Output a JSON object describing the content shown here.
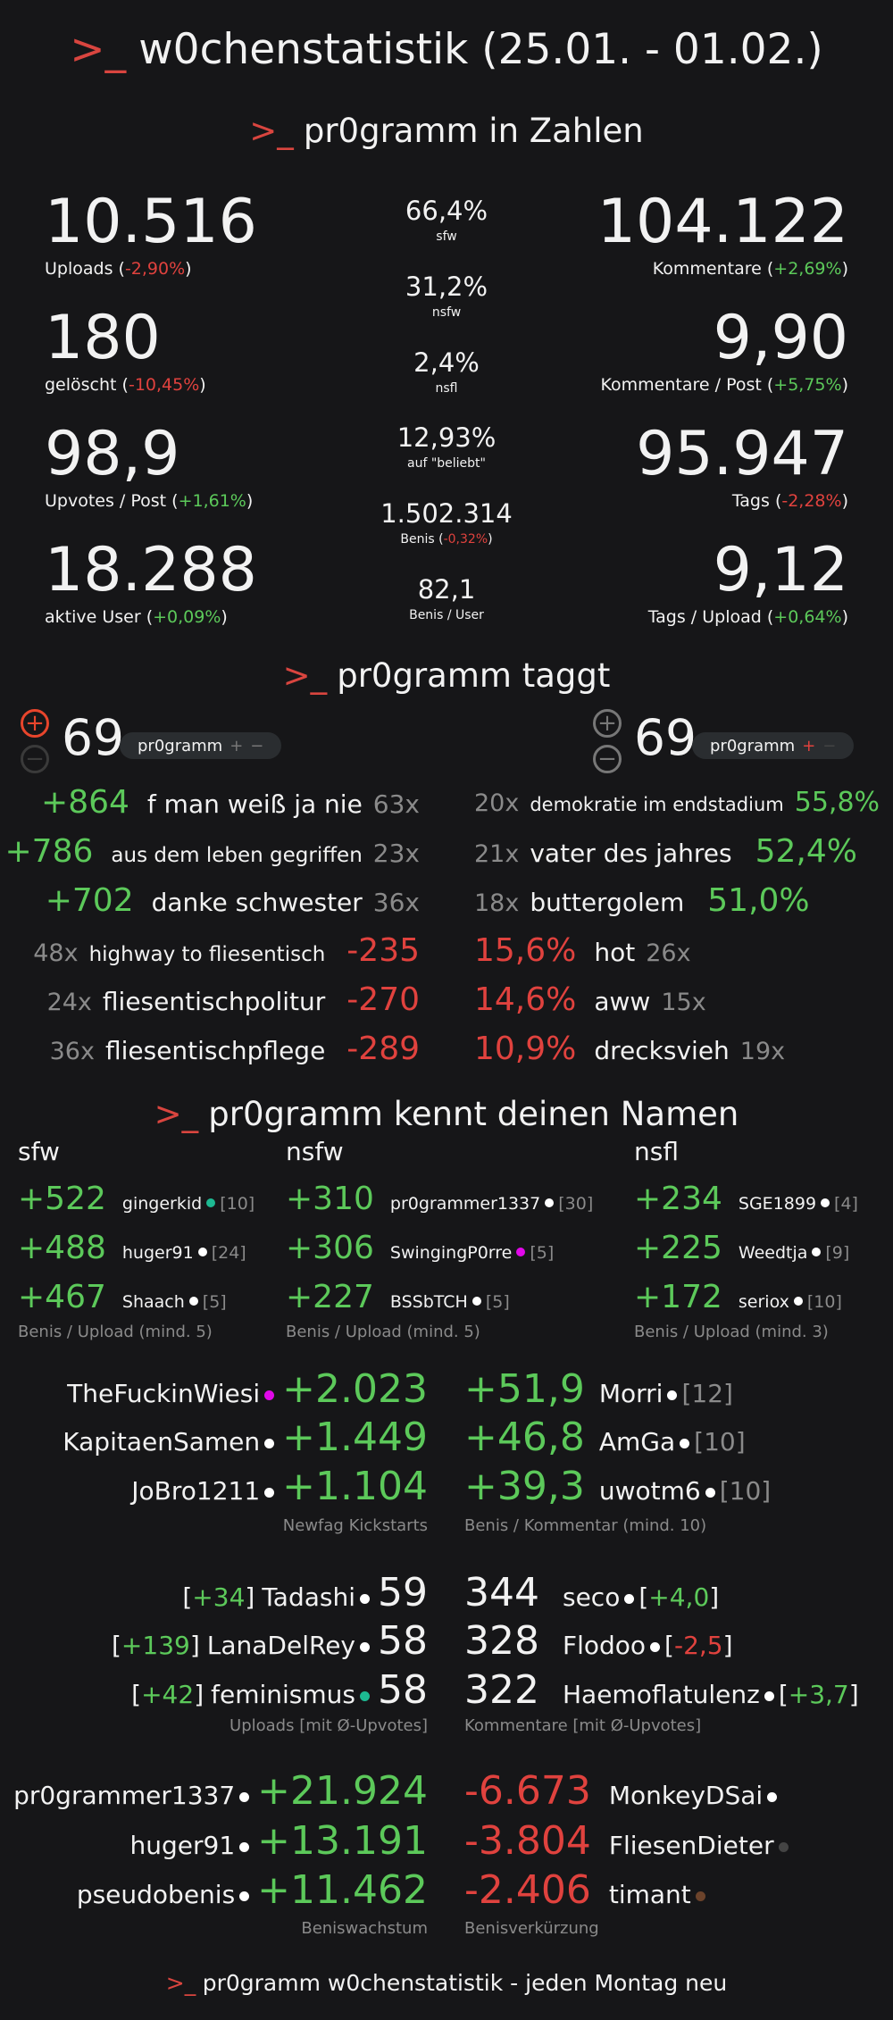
{
  "header": {
    "prompt": ">_",
    "title": "w0chenstatistik (25.01. - 01.02.)"
  },
  "colors": {
    "green": "#5cc95a",
    "red": "#e0423e",
    "gray": "#8a8a8a",
    "background": "#161618",
    "prompt": "#d9453f"
  },
  "zahlen": {
    "prompt": ">_",
    "title": "pr0gramm in Zahlen",
    "left": [
      {
        "value": "10.516",
        "label": "Uploads",
        "change": "-2,90%",
        "trend": "down"
      },
      {
        "value": "180",
        "label": "gelöscht",
        "change": "-10,45%",
        "trend": "down"
      },
      {
        "value": "98,9",
        "label": "Upvotes / Post",
        "change": "+1,61%",
        "trend": "up"
      },
      {
        "value": "18.288",
        "label": "aktive User",
        "change": "+0,09%",
        "trend": "up"
      }
    ],
    "center": [
      {
        "value": "66,4%",
        "label": "sfw"
      },
      {
        "value": "31,2%",
        "label": "nsfw"
      },
      {
        "value": "2,4%",
        "label": "nsfl"
      },
      {
        "value": "12,93%",
        "label": "auf \"beliebt\""
      },
      {
        "value": "1.502.314",
        "label": "Benis",
        "change": "-0,32%",
        "trend": "down"
      },
      {
        "value": "82,1",
        "label": "Benis / User"
      }
    ],
    "right": [
      {
        "value": "104.122",
        "label": "Kommentare",
        "change": "+2,69%",
        "trend": "up"
      },
      {
        "value": "9,90",
        "label": "Kommentare / Post",
        "change": "+5,75%",
        "trend": "up"
      },
      {
        "value": "95.947",
        "label": "Tags",
        "change": "-2,28%",
        "trend": "down"
      },
      {
        "value": "9,12",
        "label": "Tags / Upload",
        "change": "+0,64%",
        "trend": "up"
      }
    ]
  },
  "taggt": {
    "prompt": ">_",
    "title": "pr0gramm taggt",
    "left_control": {
      "plus": "+",
      "minus": "−",
      "count": "69",
      "tag": "pr0gramm",
      "tag_plus": "+",
      "tag_minus": "−"
    },
    "right_control": {
      "plus": "+",
      "minus": "−",
      "count": "69",
      "tag": "pr0gramm",
      "tag_plus": "+",
      "tag_minus": "−"
    },
    "top_benis": [
      {
        "benis": "+864",
        "tag": "f man weiß ja nie",
        "count": "63x"
      },
      {
        "benis": "+786",
        "tag": "aus dem leben gegriffen",
        "count": "23x"
      },
      {
        "benis": "+702",
        "tag": "danke schwester",
        "count": "36x"
      }
    ],
    "flop_benis": [
      {
        "count": "48x",
        "tag": "highway to fliesentisch",
        "benis": "-235"
      },
      {
        "count": "24x",
        "tag": "fliesentischpolitur",
        "benis": "-270"
      },
      {
        "count": "36x",
        "tag": "fliesentischpflege",
        "benis": "-289"
      }
    ],
    "top_percent": [
      {
        "count": "20x",
        "tag": "demokratie im endstadium",
        "percent": "55,8%"
      },
      {
        "count": "21x",
        "tag": "vater des jahres",
        "percent": "52,4%"
      },
      {
        "count": "18x",
        "tag": "buttergolem",
        "percent": "51,0%"
      }
    ],
    "flop_percent": [
      {
        "percent": "15,6%",
        "tag": "hot",
        "count": "26x"
      },
      {
        "percent": "14,6%",
        "tag": "aww",
        "count": "15x"
      },
      {
        "percent": "10,9%",
        "tag": "drecksvieh",
        "count": "19x"
      }
    ]
  },
  "namen": {
    "prompt": ">_",
    "title": "pr0gramm kennt deinen Namen",
    "categories": [
      {
        "title": "sfw",
        "caption": "Benis / Upload (mind. 5)",
        "rows": [
          {
            "value": "+522",
            "user": "gingerkid",
            "dot": "#1db992",
            "count": "[10]"
          },
          {
            "value": "+488",
            "user": "huger91",
            "dot": "#ffffff",
            "count": "[24]"
          },
          {
            "value": "+467",
            "user": "Shaach",
            "dot": "#ffffff",
            "count": "[5]"
          }
        ]
      },
      {
        "title": "nsfw",
        "caption": "Benis / Upload (mind. 5)",
        "rows": [
          {
            "value": "+310",
            "user": "pr0grammer1337",
            "dot": "#ffffff",
            "count": "[30]"
          },
          {
            "value": "+306",
            "user": "SwingingP0rre",
            "dot": "#e108e9",
            "count": "[5]"
          },
          {
            "value": "+227",
            "user": "BSSbTCH",
            "dot": "#ffffff",
            "count": "[5]"
          }
        ]
      },
      {
        "title": "nsfl",
        "caption": "Benis / Upload (mind. 3)",
        "rows": [
          {
            "value": "+234",
            "user": "SGE1899",
            "dot": "#ffffff",
            "count": "[4]"
          },
          {
            "value": "+225",
            "user": "Weedtja",
            "dot": "#ffffff",
            "count": "[9]"
          },
          {
            "value": "+172",
            "user": "seriox",
            "dot": "#ffffff",
            "count": "[10]"
          }
        ]
      }
    ],
    "kickstarts": {
      "caption": "Newfag Kickstarts",
      "rows": [
        {
          "user": "TheFuckinWiesi",
          "dot": "#e108e9",
          "value": "+2.023"
        },
        {
          "user": "KapitaenSamen",
          "dot": "#ffffff",
          "value": "+1.449"
        },
        {
          "user": "JoBro1211",
          "dot": "#ffffff",
          "value": "+1.104"
        }
      ]
    },
    "benis_per_comment": {
      "caption": "Benis / Kommentar (mind. 10)",
      "rows": [
        {
          "value": "+51,9",
          "user": "Morri",
          "dot": "#ffffff",
          "count": "[12]"
        },
        {
          "value": "+46,8",
          "user": "AmGa",
          "dot": "#ffffff",
          "count": "[10]"
        },
        {
          "value": "+39,3",
          "user": "uwotm6",
          "dot": "#ffffff",
          "count": "[10]"
        }
      ]
    },
    "uploads": {
      "caption": "Uploads [mit Ø-Upvotes]",
      "rows": [
        {
          "avg": "+34",
          "avg_trend": "up",
          "user": "Tadashi",
          "dot": "#ffffff",
          "value": "59"
        },
        {
          "avg": "+139",
          "avg_trend": "up",
          "user": "LanaDelRey",
          "dot": "#ffffff",
          "value": "58"
        },
        {
          "avg": "+42",
          "avg_trend": "up",
          "user": "feminismus",
          "dot": "#1db992",
          "value": "58"
        }
      ]
    },
    "comments": {
      "caption": "Kommentare [mit Ø-Upvotes]",
      "rows": [
        {
          "value": "344",
          "user": "seco",
          "dot": "#ffffff",
          "avg": "+4,0",
          "avg_trend": "up"
        },
        {
          "value": "328",
          "user": "Flodoo",
          "dot": "#ffffff",
          "avg": "-2,5",
          "avg_trend": "down"
        },
        {
          "value": "322",
          "user": "Haemoflatulenz",
          "dot": "#ffffff",
          "avg": "+3,7",
          "avg_trend": "up"
        }
      ]
    },
    "growth": {
      "caption": "Beniswachstum",
      "rows": [
        {
          "user": "pr0grammer1337",
          "dot": "#ffffff",
          "value": "+21.924"
        },
        {
          "user": "huger91",
          "dot": "#ffffff",
          "value": "+13.191"
        },
        {
          "user": "pseudobenis",
          "dot": "#ffffff",
          "value": "+11.462"
        }
      ]
    },
    "shrink": {
      "caption": "Benisverkürzung",
      "rows": [
        {
          "value": "-6.673",
          "user": "MonkeyDSai",
          "dot": "#ffffff"
        },
        {
          "value": "-3.804",
          "user": "FliesenDieter",
          "dot": "#444444"
        },
        {
          "value": "-2.406",
          "user": "timant",
          "dot": "#6c432b"
        }
      ]
    }
  },
  "footer": {
    "prompt": ">_",
    "text": "pr0gramm w0chenstatistik - jeden Montag neu"
  }
}
